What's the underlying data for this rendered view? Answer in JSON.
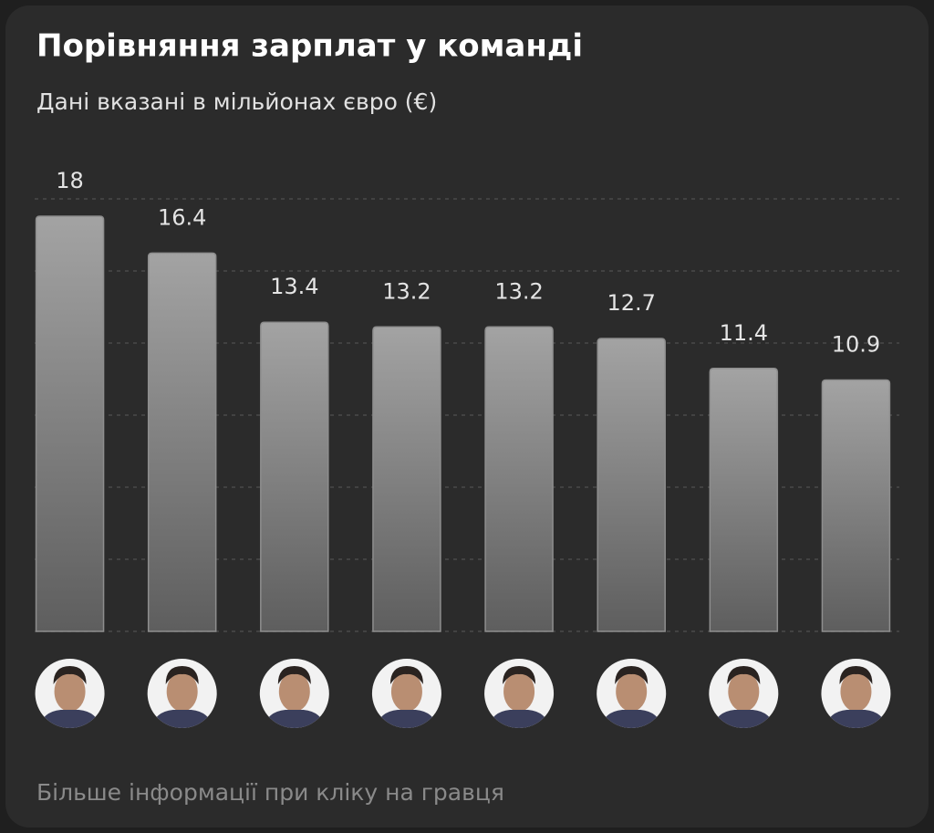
{
  "chart_data": {
    "type": "bar",
    "title": "Порівняння зарплат у команді",
    "subtitle": "Дані вказані в мільйонах євро (€)",
    "footnote": "Більше інформації при кліку на гравця",
    "categories": [
      null,
      null,
      null,
      null,
      null,
      null,
      null,
      null
    ],
    "values": [
      18,
      16.4,
      13.4,
      13.2,
      13.2,
      12.7,
      11.4,
      10.9
    ],
    "color": "#8e8e8e",
    "ylim": [
      0,
      18.75
    ],
    "yticks": [
      0,
      3.125,
      6.25,
      9.375,
      12.5,
      15.625,
      18.75
    ],
    "grid": true
  }
}
